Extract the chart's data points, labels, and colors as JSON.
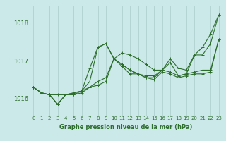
{
  "title": "Graphe pression niveau de la mer (hPa)",
  "bg_color": "#cce9e9",
  "grid_color": "#aacccc",
  "line_color": "#2d6e2d",
  "xlim": [
    -0.5,
    23.5
  ],
  "ylim": [
    1015.55,
    1018.45
  ],
  "yticks": [
    1016,
    1017,
    1018
  ],
  "xticks": [
    0,
    1,
    2,
    3,
    4,
    5,
    6,
    7,
    8,
    9,
    10,
    11,
    12,
    13,
    14,
    15,
    16,
    17,
    18,
    19,
    20,
    21,
    22,
    23
  ],
  "series": [
    [
      1016.3,
      1016.15,
      1016.1,
      1015.85,
      1016.1,
      1016.1,
      1016.2,
      1016.8,
      1017.35,
      1017.45,
      1017.05,
      1017.2,
      1017.15,
      1017.05,
      1016.9,
      1016.75,
      1016.75,
      1017.05,
      1016.8,
      1016.75,
      1017.15,
      1017.15,
      1017.45,
      1018.2
    ],
    [
      1016.3,
      1016.15,
      1016.1,
      1015.85,
      1016.1,
      1016.1,
      1016.15,
      1016.3,
      1016.35,
      1016.45,
      1017.05,
      1016.85,
      1016.65,
      1016.65,
      1016.55,
      1016.5,
      1016.7,
      1016.65,
      1016.55,
      1016.6,
      1016.65,
      1016.65,
      1016.7,
      1017.55
    ],
    [
      1016.3,
      1016.15,
      1016.1,
      1016.1,
      1016.1,
      1016.15,
      1016.2,
      1016.3,
      1016.45,
      1016.55,
      1017.05,
      1016.9,
      1016.75,
      1016.65,
      1016.6,
      1016.6,
      1016.75,
      1016.7,
      1016.6,
      1016.65,
      1016.7,
      1016.75,
      1016.75,
      1017.55
    ],
    [
      1016.3,
      1016.15,
      1016.1,
      1015.85,
      1016.1,
      1016.15,
      1016.2,
      1016.45,
      1017.35,
      1017.45,
      1017.05,
      1016.9,
      1016.75,
      1016.65,
      1016.55,
      1016.55,
      1016.75,
      1016.95,
      1016.6,
      1016.65,
      1017.15,
      1017.35,
      1017.7,
      1018.2
    ]
  ]
}
